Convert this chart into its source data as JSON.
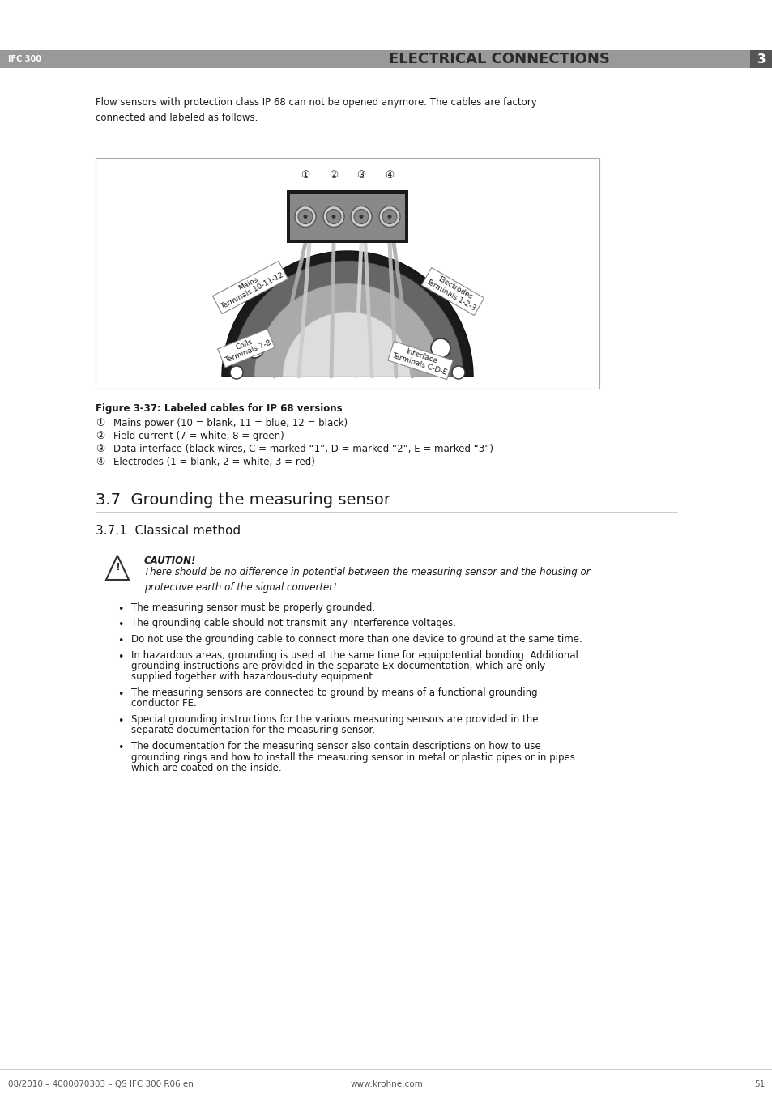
{
  "bg_color": "#ffffff",
  "header_bar_color": "#999999",
  "header_text_left": "IFC 300",
  "header_text_right": "ELECTRICAL CONNECTIONS",
  "header_number": "3",
  "header_number_bg": "#555555",
  "page_number": "51",
  "footer_left": "08/2010 – 4000070303 – QS IFC 300 R06 en",
  "footer_center": "www.krohne.com",
  "intro_text": "Flow sensors with protection class IP 68 can not be opened anymore. The cables are factory\nconnected and labeled as follows.",
  "figure_caption": "Figure 3-37: Labeled cables for IP 68 versions",
  "legend_items": [
    [
      "①",
      "Mains power (10 = blank, 11 = blue, 12 = black)"
    ],
    [
      "②",
      "Field current (7 = white, 8 = green)"
    ],
    [
      "③",
      "Data interface (black wires, C = marked “1”, D = marked “2”, E = marked “3”)"
    ],
    [
      "④",
      "Electrodes (1 = blank, 2 = white, 3 = red)"
    ]
  ],
  "section_title": "3.7  Grounding the measuring sensor",
  "subsection_title": "3.7.1  Classical method",
  "caution_title": "CAUTION!",
  "caution_text": "There should be no difference in potential between the measuring sensor and the housing or\nprotective earth of the signal converter!",
  "bullet_points": [
    "The measuring sensor must be properly grounded.",
    "The grounding cable should not transmit any interference voltages.",
    "Do not use the grounding cable to connect more than one device to ground at the same time.",
    "In hazardous areas, grounding is used at the same time for equipotential bonding. Additional\ngrounding instructions are provided in the separate Ex documentation, which are only\nsupplied together with hazardous-duty equipment.",
    "The measuring sensors are connected to ground by means of a functional grounding\nconductor FE.",
    "Special grounding instructions for the various measuring sensors are provided in the\nseparate documentation for the measuring sensor.",
    "The documentation for the measuring sensor also contain descriptions on how to use\ngrounding rings and how to install the measuring sensor in metal or plastic pipes or in pipes\nwhich are coated on the inside."
  ]
}
